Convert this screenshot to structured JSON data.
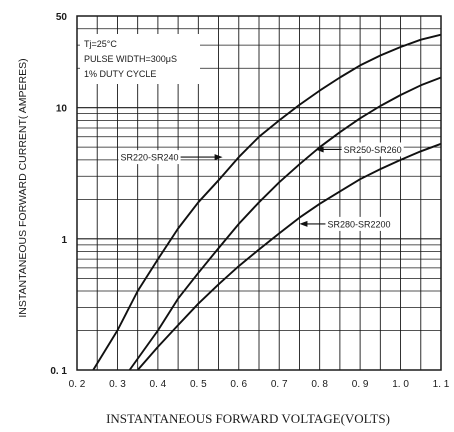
{
  "chart_data": {
    "type": "line",
    "xlabel": "INSTANTANEOUS FORWARD VOLTAGE(VOLTS)",
    "ylabel": "INSTANTANEOUS FORWARD CURRENT( AMPERES)",
    "xlim": [
      0.2,
      1.1
    ],
    "ylim": [
      0.1,
      50
    ],
    "yscale": "log",
    "grid": true,
    "x_ticks": [
      "0. 2",
      "0. 3",
      "0. 4",
      "0. 5",
      "0. 6",
      "0. 7",
      "0. 8",
      "0. 9",
      "1. 0",
      "1. 1"
    ],
    "y_ticks": [
      {
        "value": 0.1,
        "label": "0. 1"
      },
      {
        "value": 1,
        "label": "1"
      },
      {
        "value": 10,
        "label": "10"
      },
      {
        "value": 50,
        "label": "50"
      }
    ],
    "conditions": [
      "Tj=25°C",
      "PULSE WIDTH=300μS",
      "1% DUTY CYCLE"
    ],
    "series": [
      {
        "name": "SR220-SR240",
        "x": [
          0.24,
          0.3,
          0.35,
          0.4,
          0.45,
          0.5,
          0.55,
          0.6,
          0.65,
          0.7,
          0.75,
          0.8,
          0.85,
          0.9,
          0.95,
          1.0,
          1.05,
          1.1
        ],
        "y": [
          0.1,
          0.2,
          0.4,
          0.7,
          1.2,
          1.9,
          2.8,
          4.2,
          6.0,
          8.0,
          10.5,
          13.5,
          17.0,
          21.0,
          25.0,
          29.0,
          33.0,
          36.0
        ]
      },
      {
        "name": "SR250-SR260",
        "x": [
          0.33,
          0.4,
          0.45,
          0.5,
          0.55,
          0.6,
          0.65,
          0.7,
          0.75,
          0.8,
          0.85,
          0.9,
          0.95,
          1.0,
          1.05,
          1.1
        ],
        "y": [
          0.1,
          0.2,
          0.35,
          0.55,
          0.85,
          1.3,
          1.9,
          2.7,
          3.7,
          5.0,
          6.5,
          8.3,
          10.3,
          12.5,
          14.8,
          17.0
        ]
      },
      {
        "name": "SR280-SR2200",
        "x": [
          0.35,
          0.4,
          0.45,
          0.5,
          0.55,
          0.6,
          0.65,
          0.7,
          0.75,
          0.8,
          0.85,
          0.9,
          0.95,
          1.0,
          1.05,
          1.1
        ],
        "y": [
          0.1,
          0.15,
          0.22,
          0.32,
          0.45,
          0.62,
          0.83,
          1.1,
          1.45,
          1.85,
          2.3,
          2.85,
          3.4,
          4.0,
          4.65,
          5.3
        ]
      }
    ],
    "annotations": [
      {
        "series": 0,
        "text": "SR220-SR240",
        "x": 0.56,
        "y": 4.2,
        "text_side": "left"
      },
      {
        "series": 1,
        "text": "SR250-SR260",
        "x": 0.79,
        "y": 4.8,
        "text_side": "right"
      },
      {
        "series": 2,
        "text": "SR280-SR2200",
        "x": 0.75,
        "y": 1.3,
        "text_side": "right"
      }
    ]
  }
}
